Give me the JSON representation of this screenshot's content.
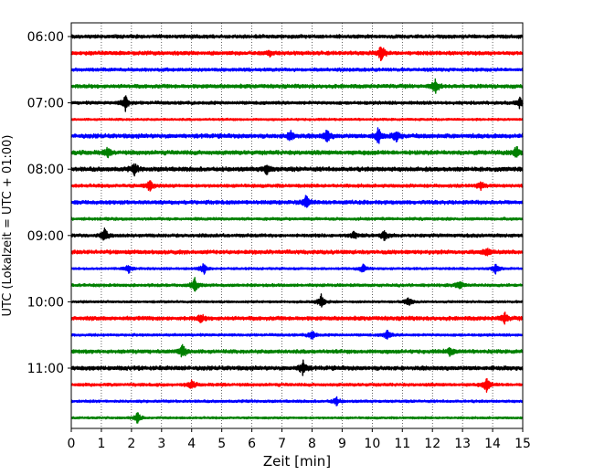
{
  "chart_data": {
    "type": "line",
    "xlabel": "Zeit  [min]",
    "ylabel": "UTC (Lokalzeit = UTC + 01:00)",
    "xlim": [
      0,
      15
    ],
    "x_ticks": [
      "0",
      "1",
      "2",
      "3",
      "4",
      "5",
      "6",
      "7",
      "8",
      "9",
      "10",
      "11",
      "12",
      "13",
      "14",
      "15"
    ],
    "y_ticks": [
      "06:00",
      "07:00",
      "08:00",
      "09:00",
      "10:00",
      "11:00"
    ],
    "y_tick_rows": [
      0,
      4,
      8,
      12,
      16,
      20
    ],
    "grid": "vertical dotted at each minute",
    "row_count": 24,
    "row_interval_minutes": 15,
    "first_row_time": "06:00",
    "trace_colors": [
      "#000000",
      "#ff0000",
      "#0000ff",
      "#008000"
    ],
    "events": [
      {
        "row": 1,
        "minute": 10.3,
        "amp": 1.0
      },
      {
        "row": 1,
        "minute": 6.6,
        "amp": 0.35
      },
      {
        "row": 3,
        "minute": 12.1,
        "amp": 0.9
      },
      {
        "row": 4,
        "minute": 1.8,
        "amp": 0.9
      },
      {
        "row": 4,
        "minute": 14.9,
        "amp": 0.6
      },
      {
        "row": 6,
        "minute": 7.3,
        "amp": 0.7
      },
      {
        "row": 6,
        "minute": 8.5,
        "amp": 0.8
      },
      {
        "row": 6,
        "minute": 10.2,
        "amp": 0.9
      },
      {
        "row": 6,
        "minute": 10.8,
        "amp": 0.7
      },
      {
        "row": 7,
        "minute": 1.2,
        "amp": 0.5
      },
      {
        "row": 7,
        "minute": 14.8,
        "amp": 0.8
      },
      {
        "row": 8,
        "minute": 2.1,
        "amp": 0.6
      },
      {
        "row": 8,
        "minute": 6.5,
        "amp": 0.6
      },
      {
        "row": 9,
        "minute": 2.6,
        "amp": 0.7
      },
      {
        "row": 9,
        "minute": 13.6,
        "amp": 0.5
      },
      {
        "row": 10,
        "minute": 7.8,
        "amp": 0.8
      },
      {
        "row": 12,
        "minute": 1.1,
        "amp": 0.95
      },
      {
        "row": 12,
        "minute": 9.4,
        "amp": 0.5
      },
      {
        "row": 12,
        "minute": 10.4,
        "amp": 0.6
      },
      {
        "row": 13,
        "minute": 13.8,
        "amp": 0.5
      },
      {
        "row": 14,
        "minute": 1.9,
        "amp": 0.6
      },
      {
        "row": 14,
        "minute": 4.4,
        "amp": 0.7
      },
      {
        "row": 14,
        "minute": 9.7,
        "amp": 0.6
      },
      {
        "row": 14,
        "minute": 14.1,
        "amp": 0.6
      },
      {
        "row": 15,
        "minute": 4.1,
        "amp": 0.85
      },
      {
        "row": 15,
        "minute": 12.9,
        "amp": 0.5
      },
      {
        "row": 16,
        "minute": 8.3,
        "amp": 0.9
      },
      {
        "row": 16,
        "minute": 11.2,
        "amp": 0.6
      },
      {
        "row": 17,
        "minute": 4.3,
        "amp": 0.5
      },
      {
        "row": 17,
        "minute": 14.4,
        "amp": 0.6
      },
      {
        "row": 18,
        "minute": 8.0,
        "amp": 0.6
      },
      {
        "row": 18,
        "minute": 10.5,
        "amp": 0.6
      },
      {
        "row": 19,
        "minute": 3.7,
        "amp": 0.8
      },
      {
        "row": 19,
        "minute": 12.6,
        "amp": 0.5
      },
      {
        "row": 20,
        "minute": 7.7,
        "amp": 0.9
      },
      {
        "row": 21,
        "minute": 4.0,
        "amp": 0.5
      },
      {
        "row": 21,
        "minute": 13.8,
        "amp": 0.85
      },
      {
        "row": 22,
        "minute": 8.8,
        "amp": 0.5
      },
      {
        "row": 23,
        "minute": 2.2,
        "amp": 0.7
      }
    ]
  }
}
